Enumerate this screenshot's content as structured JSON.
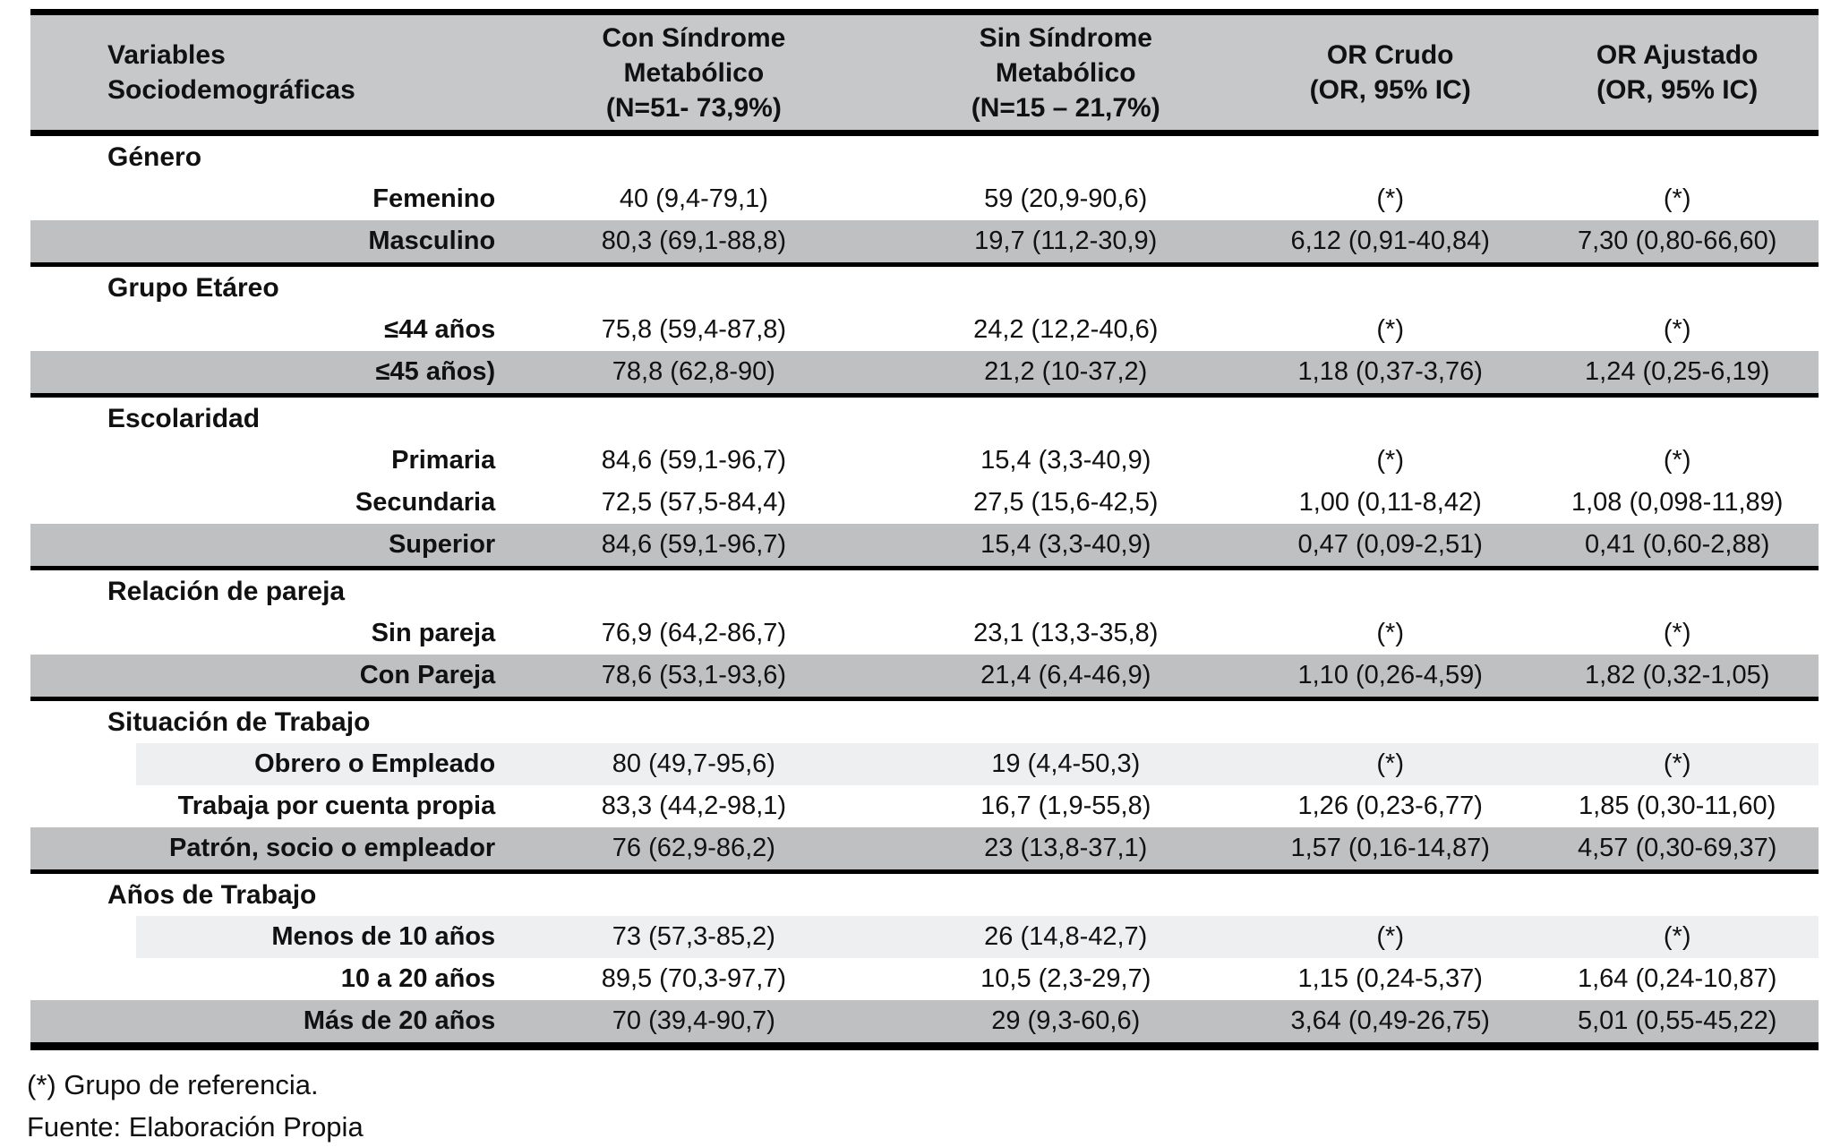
{
  "colors": {
    "header-bg": "#c6c8ca",
    "row-dark": "#bec0c2",
    "row-light": "#edeff1",
    "border": "#000000",
    "text": "#111111"
  },
  "table": {
    "header": {
      "variables": "Variables\nSociodemográficas",
      "con_sindrome": "Con Síndrome\nMetabólico\n(N=51- 73,9%)",
      "sin_sindrome": "Sin Síndrome\nMetabólico\n(N=15 – 21,7%)",
      "or_crudo": "OR Crudo\n(OR, 95% IC)",
      "or_ajustado": "OR Ajustado\n(OR, 95% IC)"
    },
    "sections": [
      {
        "title": "Género",
        "rows": [
          {
            "shade": "none",
            "cells": [
              "Femenino",
              "40 (9,4-79,1)",
              "59 (20,9-90,6)",
              "(*)",
              "(*)"
            ]
          },
          {
            "shade": "dark",
            "cells": [
              "Masculino",
              "80,3 (69,1-88,8)",
              "19,7 (11,2-30,9)",
              "6,12 (0,91-40,84)",
              "7,30 (0,80-66,60)"
            ]
          }
        ]
      },
      {
        "title": "Grupo Etáreo",
        "rows": [
          {
            "shade": "none",
            "cells": [
              "≤44 años",
              "75,8 (59,4-87,8)",
              "24,2 (12,2-40,6)",
              "(*)",
              "(*)"
            ]
          },
          {
            "shade": "dark",
            "cells": [
              "≤45 años)",
              "78,8 (62,8-90)",
              "21,2 (10-37,2)",
              "1,18 (0,37-3,76)",
              "1,24 (0,25-6,19)"
            ]
          }
        ]
      },
      {
        "title": "Escolaridad",
        "rows": [
          {
            "shade": "none",
            "cells": [
              "Primaria",
              "84,6 (59,1-96,7)",
              "15,4 (3,3-40,9)",
              "(*)",
              "(*)"
            ]
          },
          {
            "shade": "none",
            "cells": [
              "Secundaria",
              "72,5 (57,5-84,4)",
              "27,5 (15,6-42,5)",
              "1,00 (0,11-8,42)",
              "1,08 (0,098-11,89)"
            ]
          },
          {
            "shade": "dark",
            "cells": [
              "Superior",
              "84,6 (59,1-96,7)",
              "15,4 (3,3-40,9)",
              "0,47 (0,09-2,51)",
              "0,41 (0,60-2,88)"
            ]
          }
        ]
      },
      {
        "title": "Relación de pareja",
        "rows": [
          {
            "shade": "none",
            "cells": [
              "Sin pareja",
              "76,9 (64,2-86,7)",
              "23,1 (13,3-35,8)",
              "(*)",
              "(*)"
            ]
          },
          {
            "shade": "dark",
            "cells": [
              "Con Pareja",
              "78,6 (53,1-93,6)",
              "21,4 (6,4-46,9)",
              "1,10 (0,26-4,59)",
              "1,82 (0,32-1,05)"
            ]
          }
        ]
      },
      {
        "title": "Situación de Trabajo",
        "rows": [
          {
            "shade": "light",
            "cells": [
              "Obrero o Empleado",
              "80 (49,7-95,6)",
              "19 (4,4-50,3)",
              "(*)",
              "(*)"
            ]
          },
          {
            "shade": "none",
            "cells": [
              "Trabaja por cuenta propia",
              "83,3 (44,2-98,1)",
              "16,7 (1,9-55,8)",
              "1,26 (0,23-6,77)",
              "1,85 (0,30-11,60)"
            ]
          },
          {
            "shade": "dark",
            "cells": [
              "Patrón, socio o empleador",
              "76 (62,9-86,2)",
              "23 (13,8-37,1)",
              "1,57 (0,16-14,87)",
              "4,57 (0,30-69,37)"
            ]
          }
        ]
      },
      {
        "title": "Años de Trabajo",
        "rows": [
          {
            "shade": "light",
            "cells": [
              "Menos de 10 años",
              "73 (57,3-85,2)",
              "26 (14,8-42,7)",
              "(*)",
              "(*)"
            ]
          },
          {
            "shade": "none",
            "cells": [
              "10 a 20 años",
              "89,5 (70,3-97,7)",
              "10,5 (2,3-29,7)",
              "1,15 (0,24-5,37)",
              "1,64 (0,24-10,87)"
            ]
          },
          {
            "shade": "dark",
            "cells": [
              "Más de 20 años",
              "70 (39,4-90,7)",
              "29 (9,3-60,6)",
              "3,64 (0,49-26,75)",
              "5,01 (0,55-45,22)"
            ]
          }
        ]
      }
    ]
  },
  "footnotes": {
    "reference": "(*) Grupo de referencia.",
    "source": "Fuente: Elaboración Propia"
  }
}
